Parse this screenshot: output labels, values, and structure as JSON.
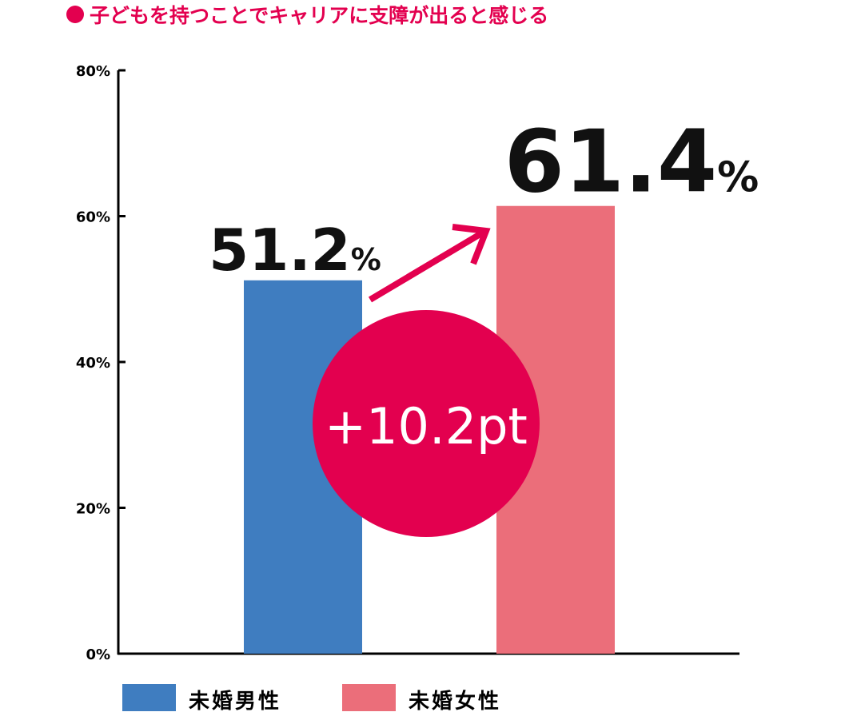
{
  "chart_data": {
    "type": "bar",
    "title": "子どもを持つことでキャリアに支障が出ると感じる",
    "categories": [
      "未婚男性",
      "未婚女性"
    ],
    "values": [
      51.2,
      61.4
    ],
    "value_suffix": "%",
    "colors": [
      "#3f7dc0",
      "#eb6e7a"
    ],
    "ylim": [
      0,
      80
    ],
    "yticks": [
      {
        "value": 0,
        "label": "0%"
      },
      {
        "value": 20,
        "label": "20%"
      },
      {
        "value": 40,
        "label": "40%"
      },
      {
        "value": 60,
        "label": "60%"
      },
      {
        "value": 80,
        "label": "80%"
      }
    ],
    "annotation": "+10.2pt",
    "annotation_color": "#e3004f"
  }
}
